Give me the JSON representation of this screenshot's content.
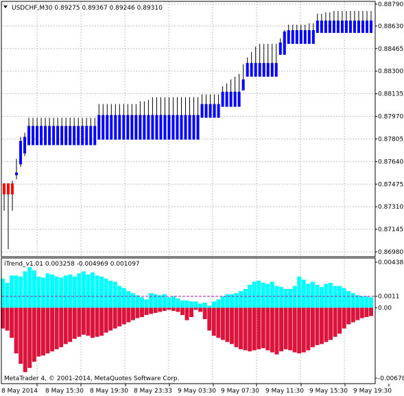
{
  "header": {
    "main_title": "USDCHF,M30  0.89275 0.89367 0.89246 0.89310",
    "indicator_title": "iTrend_v1.01 0.003258 -0.004969 0.001097",
    "copyright": "MetaTrader 4, © 2001-2014, MetaQuotes Software Corp."
  },
  "colors": {
    "bull": "#0000ff",
    "bear": "#ff0000",
    "histogram_positive": "#00ffff",
    "histogram_negative": "#dc143c",
    "signal_line": "#a020a0"
  },
  "chart_data": [
    {
      "type": "candlestick",
      "title": "USDCHF,M30",
      "symbol": "USDCHF",
      "timeframe": "M30",
      "last_ohlc": {
        "open": 0.89275,
        "high": 0.89367,
        "low": 0.89246,
        "close": 0.8931
      },
      "ylim": [
        0.8696,
        0.888
      ],
      "price_labels": [
        "0.88790",
        "0.88630",
        "0.88465",
        "0.88300",
        "0.88135",
        "0.87970",
        "0.87805",
        "0.87640",
        "0.87475",
        "0.87310",
        "0.87145",
        "0.86980"
      ],
      "price_ticks": [
        0.8879,
        0.8863,
        0.88465,
        0.883,
        0.88135,
        0.8797,
        0.87805,
        0.8764,
        0.87475,
        0.8731,
        0.87145,
        0.8698
      ],
      "x_labels": [
        "8 May 2014",
        "8 May 15:30",
        "8 May 19:30",
        "8 May 23:33",
        "9 May 03:30",
        "9 May 07:30",
        "9 May 11:30",
        "9 May 15:30",
        "9 May 19:30"
      ],
      "grid": true,
      "candles": [
        {
          "o": 0.8748,
          "h": 0.8748,
          "l": 0.8728,
          "c": 0.874
        },
        {
          "o": 0.8748,
          "h": 0.8748,
          "l": 0.87,
          "c": 0.874
        },
        {
          "o": 0.8748,
          "h": 0.875,
          "l": 0.8728,
          "c": 0.874
        },
        {
          "o": 0.8754,
          "h": 0.8766,
          "l": 0.8751,
          "c": 0.8756
        },
        {
          "o": 0.8762,
          "h": 0.8782,
          "l": 0.876,
          "c": 0.8779
        },
        {
          "o": 0.877,
          "h": 0.8785,
          "l": 0.8768,
          "c": 0.8782
        },
        {
          "o": 0.8776,
          "h": 0.8796,
          "l": 0.8776,
          "c": 0.879
        },
        {
          "o": 0.8776,
          "h": 0.8796,
          "l": 0.8776,
          "c": 0.879
        },
        {
          "o": 0.8776,
          "h": 0.8796,
          "l": 0.8776,
          "c": 0.879
        },
        {
          "o": 0.8776,
          "h": 0.8796,
          "l": 0.8776,
          "c": 0.879
        },
        {
          "o": 0.8776,
          "h": 0.8796,
          "l": 0.8776,
          "c": 0.879
        },
        {
          "o": 0.8776,
          "h": 0.8796,
          "l": 0.8776,
          "c": 0.879
        },
        {
          "o": 0.8776,
          "h": 0.8796,
          "l": 0.8776,
          "c": 0.879
        },
        {
          "o": 0.8776,
          "h": 0.8796,
          "l": 0.8776,
          "c": 0.879
        },
        {
          "o": 0.8776,
          "h": 0.8796,
          "l": 0.8776,
          "c": 0.879
        },
        {
          "o": 0.8776,
          "h": 0.8796,
          "l": 0.8776,
          "c": 0.879
        },
        {
          "o": 0.8776,
          "h": 0.8796,
          "l": 0.8776,
          "c": 0.879
        },
        {
          "o": 0.8776,
          "h": 0.8796,
          "l": 0.8776,
          "c": 0.879
        },
        {
          "o": 0.8776,
          "h": 0.8796,
          "l": 0.8776,
          "c": 0.879
        },
        {
          "o": 0.8776,
          "h": 0.8796,
          "l": 0.8776,
          "c": 0.879
        },
        {
          "o": 0.8776,
          "h": 0.8796,
          "l": 0.8776,
          "c": 0.879
        },
        {
          "o": 0.8776,
          "h": 0.8796,
          "l": 0.8776,
          "c": 0.879
        },
        {
          "o": 0.8776,
          "h": 0.8796,
          "l": 0.8776,
          "c": 0.879
        },
        {
          "o": 0.878,
          "h": 0.8806,
          "l": 0.878,
          "c": 0.8798
        },
        {
          "o": 0.878,
          "h": 0.8806,
          "l": 0.878,
          "c": 0.8798
        },
        {
          "o": 0.878,
          "h": 0.8806,
          "l": 0.878,
          "c": 0.8798
        },
        {
          "o": 0.878,
          "h": 0.8806,
          "l": 0.878,
          "c": 0.8798
        },
        {
          "o": 0.878,
          "h": 0.8806,
          "l": 0.878,
          "c": 0.8798
        },
        {
          "o": 0.878,
          "h": 0.8806,
          "l": 0.878,
          "c": 0.8798
        },
        {
          "o": 0.878,
          "h": 0.8806,
          "l": 0.878,
          "c": 0.8798
        },
        {
          "o": 0.878,
          "h": 0.8806,
          "l": 0.878,
          "c": 0.8798
        },
        {
          "o": 0.878,
          "h": 0.8806,
          "l": 0.878,
          "c": 0.8798
        },
        {
          "o": 0.878,
          "h": 0.8806,
          "l": 0.878,
          "c": 0.8798
        },
        {
          "o": 0.878,
          "h": 0.8808,
          "l": 0.878,
          "c": 0.8798
        },
        {
          "o": 0.878,
          "h": 0.8808,
          "l": 0.878,
          "c": 0.8798
        },
        {
          "o": 0.878,
          "h": 0.8809,
          "l": 0.878,
          "c": 0.8798
        },
        {
          "o": 0.878,
          "h": 0.8811,
          "l": 0.878,
          "c": 0.8798
        },
        {
          "o": 0.878,
          "h": 0.8811,
          "l": 0.878,
          "c": 0.8798
        },
        {
          "o": 0.878,
          "h": 0.8811,
          "l": 0.878,
          "c": 0.8798
        },
        {
          "o": 0.878,
          "h": 0.8811,
          "l": 0.878,
          "c": 0.8798
        },
        {
          "o": 0.878,
          "h": 0.8811,
          "l": 0.878,
          "c": 0.8798
        },
        {
          "o": 0.878,
          "h": 0.8811,
          "l": 0.878,
          "c": 0.8798
        },
        {
          "o": 0.878,
          "h": 0.8811,
          "l": 0.878,
          "c": 0.8798
        },
        {
          "o": 0.878,
          "h": 0.8811,
          "l": 0.878,
          "c": 0.8798
        },
        {
          "o": 0.878,
          "h": 0.8811,
          "l": 0.878,
          "c": 0.8798
        },
        {
          "o": 0.878,
          "h": 0.8811,
          "l": 0.878,
          "c": 0.8798
        },
        {
          "o": 0.878,
          "h": 0.8811,
          "l": 0.878,
          "c": 0.8798
        },
        {
          "o": 0.878,
          "h": 0.8811,
          "l": 0.878,
          "c": 0.8798
        },
        {
          "o": 0.8796,
          "h": 0.8813,
          "l": 0.8796,
          "c": 0.8806
        },
        {
          "o": 0.8796,
          "h": 0.8813,
          "l": 0.8796,
          "c": 0.8806
        },
        {
          "o": 0.8796,
          "h": 0.8813,
          "l": 0.8796,
          "c": 0.8806
        },
        {
          "o": 0.8796,
          "h": 0.8813,
          "l": 0.8796,
          "c": 0.8806
        },
        {
          "o": 0.8796,
          "h": 0.8813,
          "l": 0.8796,
          "c": 0.8806
        },
        {
          "o": 0.8804,
          "h": 0.8819,
          "l": 0.8804,
          "c": 0.8815
        },
        {
          "o": 0.8804,
          "h": 0.8821,
          "l": 0.8804,
          "c": 0.8815
        },
        {
          "o": 0.8804,
          "h": 0.8824,
          "l": 0.8804,
          "c": 0.8815
        },
        {
          "o": 0.8804,
          "h": 0.8826,
          "l": 0.8804,
          "c": 0.8815
        },
        {
          "o": 0.8804,
          "h": 0.8828,
          "l": 0.8804,
          "c": 0.8815
        },
        {
          "o": 0.8816,
          "h": 0.8835,
          "l": 0.8816,
          "c": 0.8824
        },
        {
          "o": 0.8826,
          "h": 0.884,
          "l": 0.8826,
          "c": 0.8836
        },
        {
          "o": 0.8826,
          "h": 0.8844,
          "l": 0.8826,
          "c": 0.8836
        },
        {
          "o": 0.8826,
          "h": 0.8848,
          "l": 0.8826,
          "c": 0.8836
        },
        {
          "o": 0.8826,
          "h": 0.885,
          "l": 0.8826,
          "c": 0.8836
        },
        {
          "o": 0.8826,
          "h": 0.885,
          "l": 0.8826,
          "c": 0.8836
        },
        {
          "o": 0.8826,
          "h": 0.885,
          "l": 0.8826,
          "c": 0.8836
        },
        {
          "o": 0.8826,
          "h": 0.885,
          "l": 0.8826,
          "c": 0.8836
        },
        {
          "o": 0.8826,
          "h": 0.885,
          "l": 0.8826,
          "c": 0.8836
        },
        {
          "o": 0.8842,
          "h": 0.8854,
          "l": 0.8842,
          "c": 0.8851
        },
        {
          "o": 0.8842,
          "h": 0.886,
          "l": 0.8842,
          "c": 0.8859
        },
        {
          "o": 0.885,
          "h": 0.8864,
          "l": 0.885,
          "c": 0.886
        },
        {
          "o": 0.885,
          "h": 0.8864,
          "l": 0.885,
          "c": 0.886
        },
        {
          "o": 0.885,
          "h": 0.8864,
          "l": 0.885,
          "c": 0.886
        },
        {
          "o": 0.885,
          "h": 0.8864,
          "l": 0.885,
          "c": 0.886
        },
        {
          "o": 0.885,
          "h": 0.8864,
          "l": 0.885,
          "c": 0.886
        },
        {
          "o": 0.885,
          "h": 0.8865,
          "l": 0.885,
          "c": 0.886
        },
        {
          "o": 0.885,
          "h": 0.8865,
          "l": 0.885,
          "c": 0.886
        },
        {
          "o": 0.8858,
          "h": 0.8872,
          "l": 0.8858,
          "c": 0.8867
        },
        {
          "o": 0.8858,
          "h": 0.8872,
          "l": 0.8858,
          "c": 0.8867
        },
        {
          "o": 0.8858,
          "h": 0.8873,
          "l": 0.8858,
          "c": 0.8867
        },
        {
          "o": 0.8858,
          "h": 0.8873,
          "l": 0.8858,
          "c": 0.8867
        },
        {
          "o": 0.8858,
          "h": 0.8874,
          "l": 0.8858,
          "c": 0.8867
        },
        {
          "o": 0.8858,
          "h": 0.8874,
          "l": 0.8858,
          "c": 0.8867
        },
        {
          "o": 0.8858,
          "h": 0.8874,
          "l": 0.8858,
          "c": 0.8867
        },
        {
          "o": 0.8858,
          "h": 0.8874,
          "l": 0.8858,
          "c": 0.8867
        },
        {
          "o": 0.8858,
          "h": 0.8874,
          "l": 0.8858,
          "c": 0.8867
        },
        {
          "o": 0.8858,
          "h": 0.8874,
          "l": 0.8858,
          "c": 0.8867
        },
        {
          "o": 0.8858,
          "h": 0.8874,
          "l": 0.8858,
          "c": 0.8867
        },
        {
          "o": 0.8858,
          "h": 0.8874,
          "l": 0.8858,
          "c": 0.8867
        },
        {
          "o": 0.8858,
          "h": 0.8874,
          "l": 0.8858,
          "c": 0.8867
        },
        {
          "o": 0.8858,
          "h": 0.8874,
          "l": 0.8858,
          "c": 0.8867
        }
      ]
    },
    {
      "type": "bar",
      "title": "iTrend_v1.01",
      "values_shown": [
        0.003258,
        -0.004969,
        0.001097
      ],
      "ylim": [
        -0.006782,
        0.004386
      ],
      "y_labels": [
        "0.004386",
        "0.0011",
        "0.00",
        "-0.006782"
      ],
      "y_ticks": [
        0.004386,
        0.0011,
        0.0,
        -0.006782
      ],
      "signal_level": 0.0011,
      "series": [
        {
          "name": "positive",
          "values": [
            0.0028,
            0.0024,
            0.0031,
            0.0031,
            0.003,
            0.0035,
            0.0039,
            0.0036,
            0.003,
            0.0029,
            0.0033,
            0.0032,
            0.003,
            0.0029,
            0.0031,
            0.0032,
            0.003,
            0.0033,
            0.0035,
            0.0032,
            0.0034,
            0.0031,
            0.003,
            0.0028,
            0.0026,
            0.0025,
            0.0021,
            0.0019,
            0.0016,
            0.0014,
            0.0012,
            0.001,
            0.0008,
            0.0014,
            0.0013,
            0.0012,
            0.0013,
            0.001,
            0.0011,
            0.0009,
            0.0007,
            0.0007,
            0.0006,
            0.0006,
            0.0004,
            0.0005,
            0.0002,
            0.0006,
            0.0008,
            0.0011,
            0.0013,
            0.0013,
            0.0014,
            0.0016,
            0.0018,
            0.0022,
            0.0025,
            0.0026,
            0.0024,
            0.0023,
            0.0025,
            0.0021,
            0.002,
            0.0018,
            0.0018,
            0.0021,
            0.003,
            0.0027,
            0.0023,
            0.0025,
            0.0022,
            0.002,
            0.0023,
            0.0024,
            0.0021,
            0.0021,
            0.0019,
            0.0016,
            0.0014,
            0.0012,
            0.0011,
            0.0011,
            0.001
          ]
        },
        {
          "name": "negative",
          "values": [
            -0.002,
            -0.0022,
            -0.0029,
            -0.0044,
            -0.0054,
            -0.0062,
            -0.0058,
            -0.0052,
            -0.0047,
            -0.0046,
            -0.0044,
            -0.0042,
            -0.004,
            -0.0038,
            -0.0035,
            -0.0033,
            -0.003,
            -0.0028,
            -0.0026,
            -0.0027,
            -0.0029,
            -0.0028,
            -0.0027,
            -0.0024,
            -0.0022,
            -0.002,
            -0.0018,
            -0.0016,
            -0.0014,
            -0.0012,
            -0.001,
            -0.0009,
            -0.0007,
            -0.0006,
            -0.0005,
            -0.0004,
            -0.0003,
            -0.0002,
            -0.0003,
            -0.0004,
            -0.0007,
            -0.0012,
            -0.0009,
            -0.0002,
            -0.0004,
            -0.0011,
            -0.0022,
            -0.0027,
            -0.0029,
            -0.0031,
            -0.0033,
            -0.0035,
            -0.0038,
            -0.004,
            -0.0041,
            -0.0042,
            -0.0041,
            -0.004,
            -0.0039,
            -0.0041,
            -0.0043,
            -0.0045,
            -0.0042,
            -0.004,
            -0.0041,
            -0.0043,
            -0.0044,
            -0.0043,
            -0.0041,
            -0.0038,
            -0.0036,
            -0.0035,
            -0.0033,
            -0.0031,
            -0.0028,
            -0.0025,
            -0.002,
            -0.0016,
            -0.0014,
            -0.0012,
            -0.001,
            -0.0009,
            -0.0008
          ]
        }
      ]
    }
  ]
}
